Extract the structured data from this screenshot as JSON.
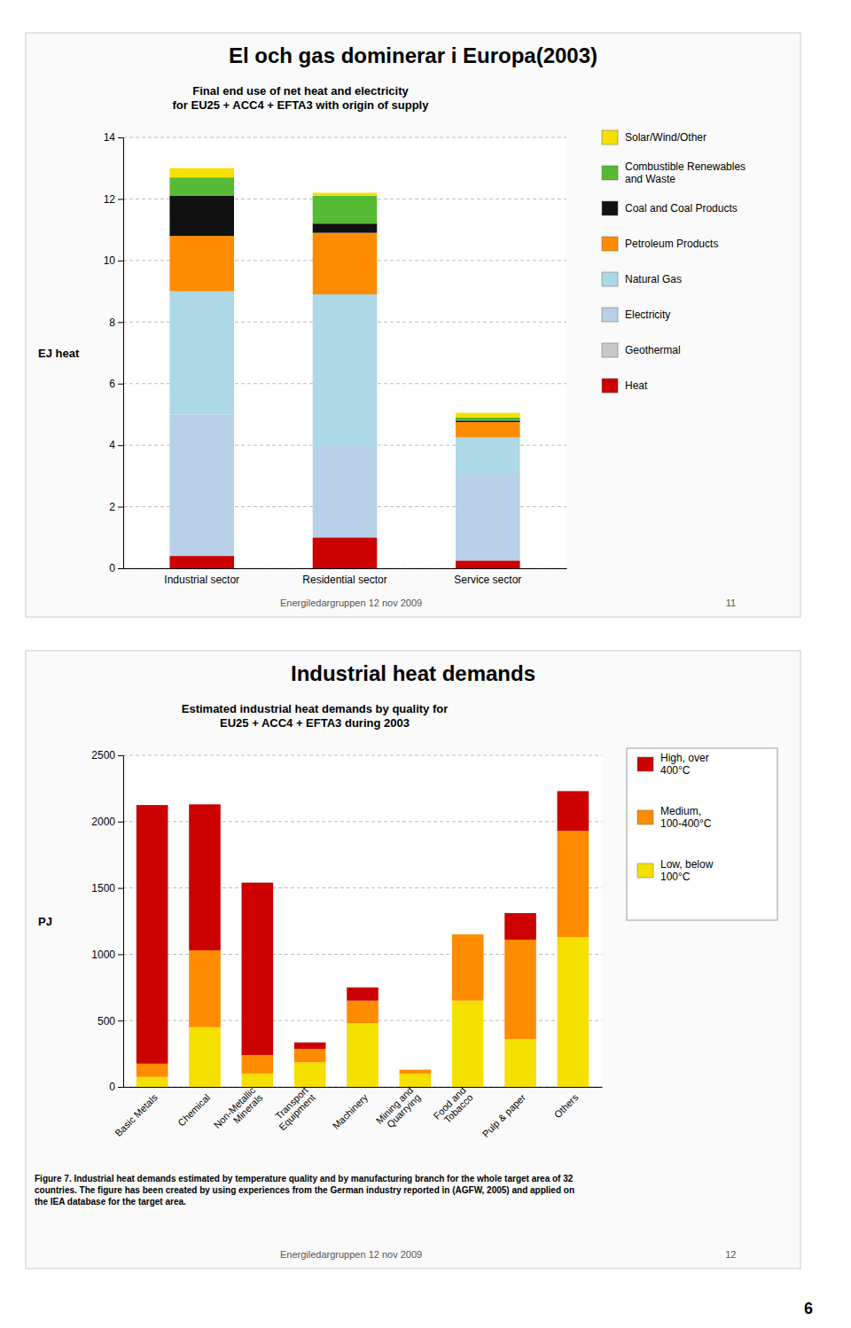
{
  "chart_data": [
    {
      "type": "bar",
      "title": "El och gas dominerar i Europa(2003)",
      "subtitle": "Final end use of net heat and electricity\nfor EU25 + ACC4 + EFTA3 with origin of supply",
      "ylabel": "EJ heat",
      "ylim": [
        0,
        14
      ],
      "yticks": [
        0,
        2,
        4,
        6,
        8,
        10,
        12,
        14
      ],
      "categories": [
        "Industrial sector",
        "Residential sector",
        "Service sector"
      ],
      "stacked": true,
      "grid": true,
      "legend": "right",
      "series": [
        {
          "name": "Heat",
          "color": "#cc0000",
          "values": [
            0.4,
            1.0,
            0.25
          ]
        },
        {
          "name": "Geothermal",
          "color": "#c8c8c8",
          "values": [
            0.0,
            0.0,
            0.0
          ]
        },
        {
          "name": "Electricity",
          "color": "#b8d0e8",
          "values": [
            4.6,
            3.0,
            2.8
          ]
        },
        {
          "name": "Natural Gas",
          "color": "#add8e6",
          "values": [
            4.0,
            4.9,
            1.2
          ]
        },
        {
          "name": "Petroleum Products",
          "color": "#ff8c00",
          "values": [
            1.8,
            2.0,
            0.5
          ]
        },
        {
          "name": "Coal and Coal Products",
          "color": "#111111",
          "values": [
            1.3,
            0.3,
            0.05
          ]
        },
        {
          "name": "Combustible Renewables\nand Waste",
          "color": "#55bb33",
          "values": [
            0.6,
            0.9,
            0.1
          ]
        },
        {
          "name": "Solar/Wind/Other",
          "color": "#f5e000",
          "values": [
            0.3,
            0.1,
            0.15
          ]
        }
      ],
      "footer": [
        "Energiledargruppen 12 nov 2009",
        "11"
      ]
    },
    {
      "type": "bar",
      "title": "Industrial heat demands",
      "subtitle": "Estimated industrial heat demands by quality for\nEU25 + ACC4 + EFTA3 during 2003",
      "ylabel": "PJ",
      "ylim": [
        0,
        2500
      ],
      "yticks": [
        0,
        500,
        1000,
        1500,
        2000,
        2500
      ],
      "categories": [
        "Basic Metals",
        "Chemical",
        "Non-Metallic\nMinerals",
        "Transport\nEquipment",
        "Machinery",
        "Mining and\nQuarrying",
        "Food and\nTobacco",
        "Pulp & paper",
        "Others"
      ],
      "stacked": true,
      "grid": true,
      "legend": "right",
      "series": [
        {
          "name": "Low, below\n100°C",
          "color": "#f5e000",
          "values": [
            75,
            450,
            100,
            185,
            480,
            100,
            650,
            360,
            1130
          ]
        },
        {
          "name": "Medium,\n100-400°C",
          "color": "#ff8c00",
          "values": [
            100,
            580,
            140,
            100,
            170,
            30,
            500,
            750,
            800
          ]
        },
        {
          "name": "High, over\n400°C",
          "color": "#cc0000",
          "values": [
            1950,
            1100,
            1300,
            50,
            100,
            0,
            0,
            200,
            300
          ]
        }
      ],
      "caption": "Figure 7. Industrial heat demands estimated by temperature quality and by manufacturing branch for the whole target area of 32\ncountries. The figure has been created by using experiences from the German industry reported in (AGFW, 2005) and applied on\nthe IEA database for the target area.",
      "footer": [
        "Energiledargruppen 12 nov 2009",
        "12"
      ],
      "annotations": [
        "6"
      ]
    }
  ]
}
